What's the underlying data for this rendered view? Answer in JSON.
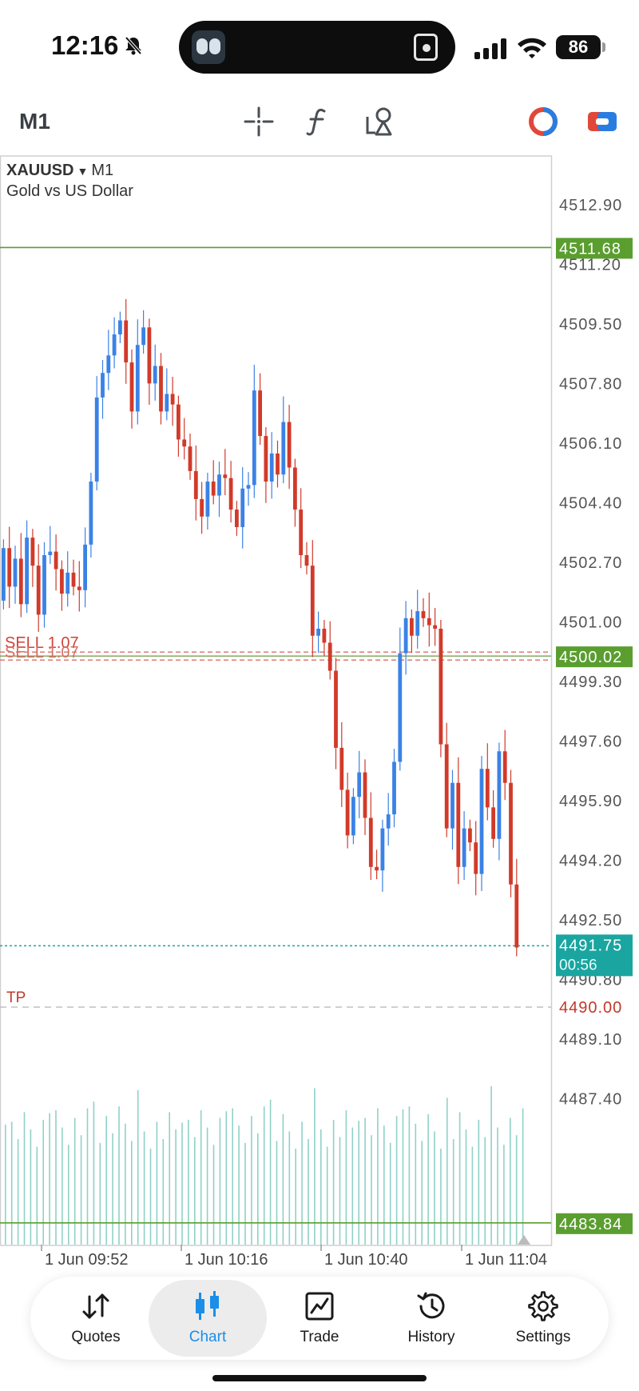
{
  "status_bar": {
    "time": "12:16",
    "battery": "86"
  },
  "toolbar": {
    "timeframe": "M1",
    "icons": [
      "crosshair-icon",
      "function-icon",
      "objects-icon",
      "indicator-circle-icon",
      "one-click-trading-icon"
    ]
  },
  "chart": {
    "symbol": "XAUUSD",
    "timeframe": "M1",
    "description": "Gold vs US Dollar",
    "price_scale": [
      "4512.90",
      "4511.20",
      "4509.50",
      "4507.80",
      "4506.10",
      "4504.40",
      "4502.70",
      "4501.00",
      "4499.30",
      "4497.60",
      "4495.90",
      "4494.20",
      "4492.50",
      "4490.80",
      "4489.10",
      "4487.40"
    ],
    "labels": {
      "upper_level": "4511.68",
      "position_level": "4500.02",
      "bid_price": "4491.75",
      "bar_timer": "00:56",
      "tp_price": "4490.00",
      "lower_level": "4483.84",
      "sell_label_1": "SELL 1.07",
      "sell_label_2": "SELL 1.07",
      "tp_label": "TP"
    },
    "time_labels": [
      "1 Jun 09:52",
      "1 Jun 10:16",
      "1 Jun 10:40",
      "1 Jun 11:04"
    ],
    "colors": {
      "bull": "#3b82e6",
      "bear": "#d13a2a",
      "level_green": "#5a9e2f",
      "bid": "#1aa5a0",
      "volume": "#8fd1c8",
      "sell_line": "#d97064"
    }
  },
  "bottom_nav": {
    "items": [
      {
        "label": "Quotes",
        "icon": "quotes-arrows-icon"
      },
      {
        "label": "Chart",
        "icon": "candles-icon"
      },
      {
        "label": "Trade",
        "icon": "trade-chart-icon"
      },
      {
        "label": "History",
        "icon": "history-clock-icon"
      },
      {
        "label": "Settings",
        "icon": "gear-icon"
      }
    ],
    "active": "Chart"
  }
}
